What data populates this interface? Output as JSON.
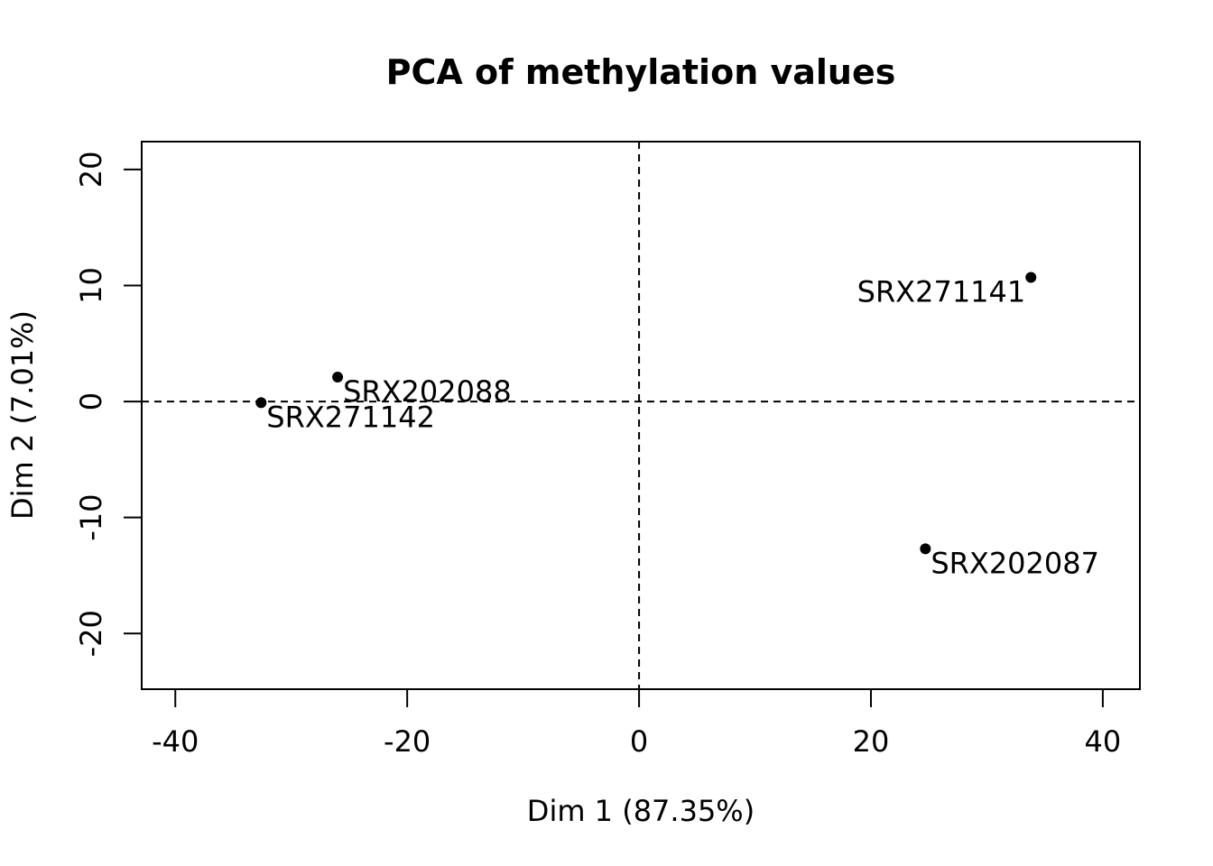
{
  "chart_data": {
    "type": "scatter",
    "title": "PCA of methylation values",
    "xlabel": "Dim 1 (87.35%)",
    "ylabel": "Dim 2 (7.01%)",
    "xlim": [
      -42.9,
      43.2
    ],
    "ylim": [
      -24.8,
      22.4
    ],
    "xticks": [
      -40,
      -20,
      0,
      20,
      40
    ],
    "yticks": [
      -20,
      -10,
      0,
      10,
      20
    ],
    "reference_lines": {
      "x": 0,
      "y": 0,
      "style": "dashed"
    },
    "grid": false,
    "colors": {
      "points": "#000000",
      "axes": "#000000",
      "background": "#ffffff"
    },
    "points": [
      {
        "label": "SRX271141",
        "x": 33.8,
        "y": 10.7,
        "label_side": "left"
      },
      {
        "label": "SRX202088",
        "x": -26.0,
        "y": 2.1,
        "label_side": "right"
      },
      {
        "label": "SRX271142",
        "x": -32.6,
        "y": -0.1,
        "label_side": "right"
      },
      {
        "label": "SRX202087",
        "x": 24.7,
        "y": -12.7,
        "label_side": "right"
      }
    ]
  }
}
